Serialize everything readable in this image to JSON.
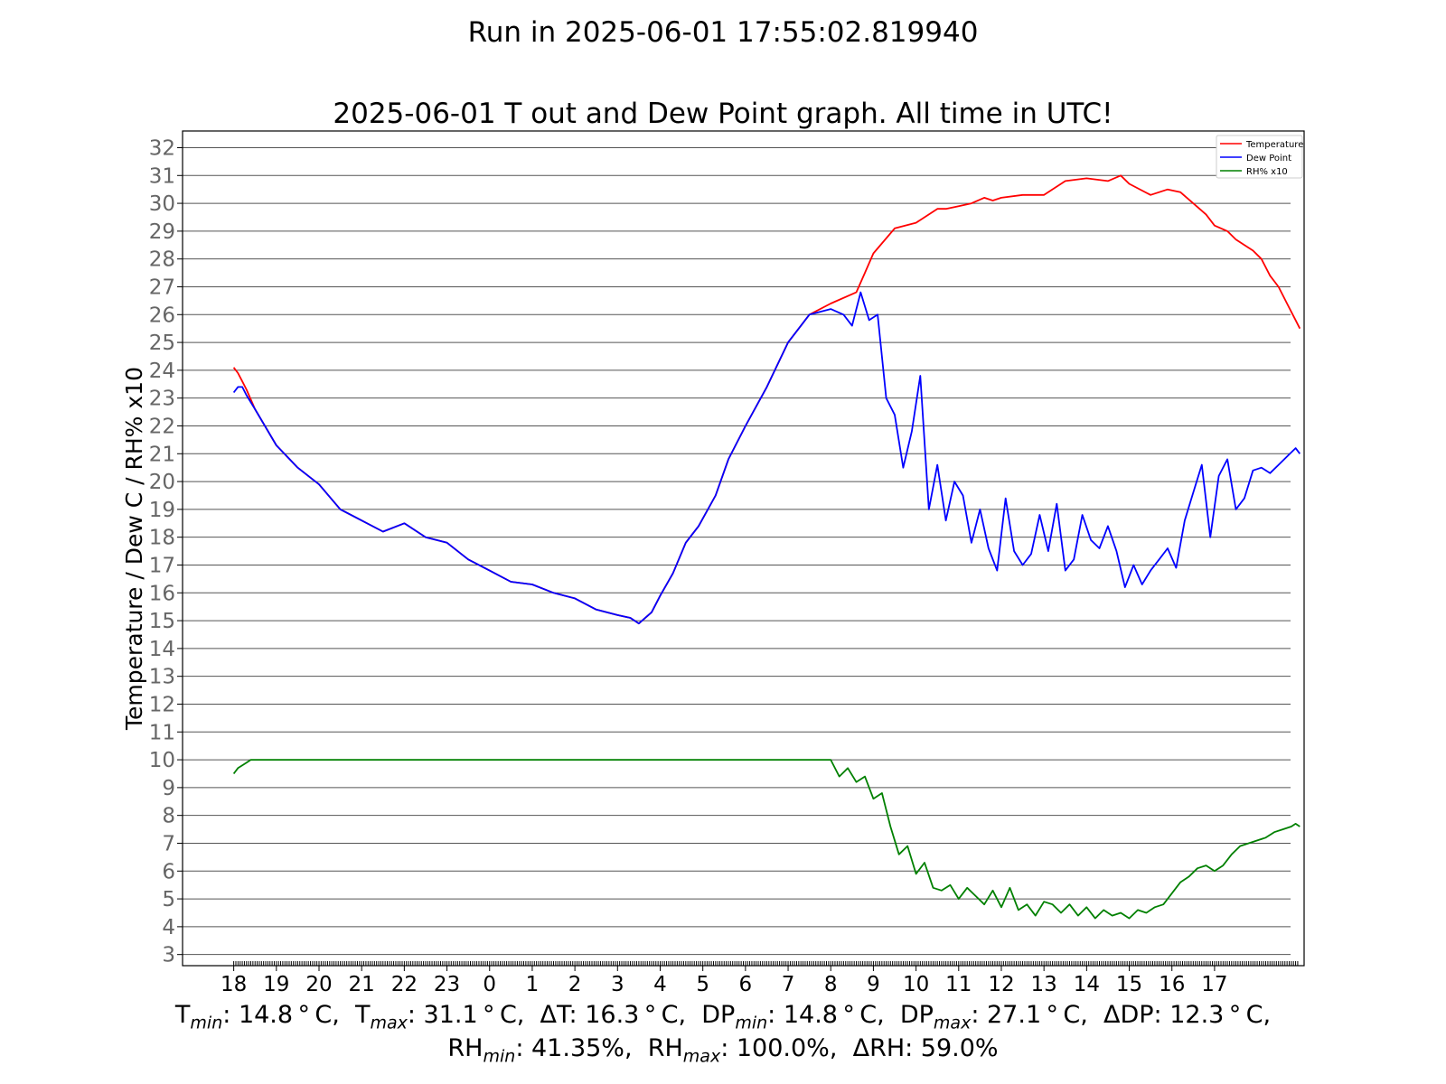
{
  "header": {
    "suptitle": "Run in 2025-06-01 17:55:02.819940"
  },
  "chart_data": {
    "type": "line",
    "title": "2025-06-01 T out and Dew Point graph. All time in UTC!",
    "xlabel": "",
    "ylabel": "Temperature / Dew C / RH% x10",
    "xtick_labels": [
      "18",
      "19",
      "20",
      "21",
      "22",
      "23",
      "0",
      "1",
      "2",
      "3",
      "4",
      "5",
      "6",
      "7",
      "8",
      "9",
      "10",
      "11",
      "12",
      "13",
      "14",
      "15",
      "16",
      "17"
    ],
    "xlim": [
      16.8,
      43.1
    ],
    "ylim": [
      2.6,
      32.6
    ],
    "yticks": [
      3,
      4,
      5,
      6,
      7,
      8,
      9,
      10,
      11,
      12,
      13,
      14,
      15,
      16,
      17,
      18,
      19,
      20,
      21,
      22,
      23,
      24,
      25,
      26,
      27,
      28,
      29,
      30,
      31,
      32
    ],
    "grid": "horizontal",
    "legend_position": "top-right",
    "series": [
      {
        "name": "Temperature",
        "color": "#ff0000",
        "x": [
          18.0,
          18.1,
          18.2,
          18.3,
          18.5,
          19.0,
          19.5,
          20.0,
          20.5,
          21.0,
          21.5,
          22.0,
          22.5,
          23.0,
          23.5,
          24.0,
          24.5,
          25.0,
          25.5,
          26.0,
          26.5,
          27.0,
          27.3,
          27.5,
          27.8,
          28.0,
          28.3,
          28.6,
          28.9,
          29.3,
          29.6,
          30.0,
          30.5,
          31.0,
          31.5,
          32.0,
          32.6,
          32.8,
          33.0,
          33.5,
          34.0,
          34.5,
          34.7,
          35.0,
          35.3,
          35.6,
          35.8,
          36.0,
          36.5,
          37.0,
          37.5,
          38.0,
          38.5,
          38.8,
          39.0,
          39.5,
          39.9,
          40.2,
          40.5,
          40.8,
          41.0,
          41.3,
          41.5,
          41.7,
          41.9,
          42.1,
          42.3,
          42.5,
          42.7,
          42.9,
          43.0
        ],
        "y": [
          24.1,
          23.9,
          23.6,
          23.3,
          22.6,
          21.3,
          20.5,
          19.9,
          19.0,
          18.6,
          18.2,
          18.5,
          18.0,
          17.8,
          17.2,
          16.8,
          16.4,
          16.3,
          16.0,
          15.8,
          15.4,
          15.2,
          15.1,
          14.9,
          15.3,
          15.9,
          16.7,
          17.8,
          18.4,
          19.5,
          20.8,
          22.0,
          23.4,
          25.0,
          26.0,
          26.4,
          26.8,
          27.5,
          28.2,
          29.1,
          29.3,
          29.8,
          29.8,
          29.9,
          30.0,
          30.2,
          30.1,
          30.2,
          30.3,
          30.3,
          30.8,
          30.9,
          30.8,
          31.0,
          30.7,
          30.3,
          30.5,
          30.4,
          30.0,
          29.6,
          29.2,
          29.0,
          28.7,
          28.5,
          28.3,
          28.0,
          27.4,
          27.0,
          26.4,
          25.8,
          25.5
        ]
      },
      {
        "name": "Dew Point",
        "color": "#0000ff",
        "x": [
          18.0,
          18.1,
          18.2,
          18.3,
          18.5,
          19.0,
          19.5,
          20.0,
          20.5,
          21.0,
          21.5,
          22.0,
          22.5,
          23.0,
          23.5,
          24.0,
          24.5,
          25.0,
          25.5,
          26.0,
          26.5,
          27.0,
          27.3,
          27.5,
          27.8,
          28.0,
          28.3,
          28.6,
          28.9,
          29.3,
          29.6,
          30.0,
          30.5,
          31.0,
          31.5,
          32.0,
          32.3,
          32.5,
          32.7,
          32.9,
          33.1,
          33.3,
          33.5,
          33.7,
          33.9,
          34.1,
          34.3,
          34.5,
          34.7,
          34.9,
          35.1,
          35.3,
          35.5,
          35.7,
          35.9,
          36.1,
          36.3,
          36.5,
          36.7,
          36.9,
          37.1,
          37.3,
          37.5,
          37.7,
          37.9,
          38.1,
          38.3,
          38.5,
          38.7,
          38.9,
          39.1,
          39.3,
          39.5,
          39.7,
          39.9,
          40.1,
          40.3,
          40.5,
          40.7,
          40.9,
          41.1,
          41.3,
          41.5,
          41.7,
          41.9,
          42.1,
          42.3,
          42.5,
          42.7,
          42.9,
          43.0
        ],
        "y": [
          23.2,
          23.4,
          23.4,
          23.1,
          22.6,
          21.3,
          20.5,
          19.9,
          19.0,
          18.6,
          18.2,
          18.5,
          18.0,
          17.8,
          17.2,
          16.8,
          16.4,
          16.3,
          16.0,
          15.8,
          15.4,
          15.2,
          15.1,
          14.9,
          15.3,
          15.9,
          16.7,
          17.8,
          18.4,
          19.5,
          20.8,
          22.0,
          23.4,
          25.0,
          26.0,
          26.2,
          26.0,
          25.6,
          26.8,
          25.8,
          26.0,
          23.0,
          22.4,
          20.5,
          21.8,
          23.8,
          19.0,
          20.6,
          18.6,
          20.0,
          19.5,
          17.8,
          19.0,
          17.6,
          16.8,
          19.4,
          17.5,
          17.0,
          17.4,
          18.8,
          17.5,
          19.2,
          16.8,
          17.2,
          18.8,
          17.9,
          17.6,
          18.4,
          17.5,
          16.2,
          17.0,
          16.3,
          16.8,
          17.2,
          17.6,
          16.9,
          18.6,
          19.6,
          20.6,
          18.0,
          20.2,
          20.8,
          19.0,
          19.4,
          20.4,
          20.5,
          20.3,
          20.6,
          20.9,
          21.2,
          21.0
        ]
      },
      {
        "name": "RH% x10",
        "color": "#008000",
        "x": [
          18.0,
          18.1,
          18.2,
          18.3,
          18.4,
          19.0,
          20.0,
          21.0,
          22.0,
          23.0,
          24.0,
          25.0,
          26.0,
          27.0,
          28.0,
          29.0,
          30.0,
          31.0,
          31.5,
          31.8,
          32.0,
          32.2,
          32.4,
          32.6,
          32.8,
          33.0,
          33.2,
          33.4,
          33.6,
          33.8,
          34.0,
          34.2,
          34.4,
          34.6,
          34.8,
          35.0,
          35.2,
          35.4,
          35.6,
          35.8,
          36.0,
          36.2,
          36.4,
          36.6,
          36.8,
          37.0,
          37.2,
          37.4,
          37.6,
          37.8,
          38.0,
          38.2,
          38.4,
          38.6,
          38.8,
          39.0,
          39.2,
          39.4,
          39.6,
          39.8,
          40.0,
          40.2,
          40.4,
          40.6,
          40.8,
          41.0,
          41.2,
          41.4,
          41.6,
          41.8,
          42.0,
          42.2,
          42.4,
          42.6,
          42.8,
          42.9,
          43.0
        ],
        "y": [
          9.5,
          9.7,
          9.8,
          9.9,
          10.0,
          10.0,
          10.0,
          10.0,
          10.0,
          10.0,
          10.0,
          10.0,
          10.0,
          10.0,
          10.0,
          10.0,
          10.0,
          10.0,
          10.0,
          10.0,
          10.0,
          9.4,
          9.7,
          9.2,
          9.4,
          8.6,
          8.8,
          7.6,
          6.6,
          6.9,
          5.9,
          6.3,
          5.4,
          5.3,
          5.5,
          5.0,
          5.4,
          5.1,
          4.8,
          5.3,
          4.7,
          5.4,
          4.6,
          4.8,
          4.4,
          4.9,
          4.8,
          4.5,
          4.8,
          4.4,
          4.7,
          4.3,
          4.6,
          4.4,
          4.5,
          4.3,
          4.6,
          4.5,
          4.7,
          4.8,
          5.2,
          5.6,
          5.8,
          6.1,
          6.2,
          6.0,
          6.2,
          6.6,
          6.9,
          7.0,
          7.1,
          7.2,
          7.4,
          7.5,
          7.6,
          7.7,
          7.6
        ]
      }
    ]
  },
  "stats": {
    "line1": {
      "t_sym": "T",
      "t_min_sub": "min",
      "t_min_val": ": 14.8$^\\circ$C,",
      "t_max_sub": "max",
      "t_max_val": ": 31.1$^\\circ$C,",
      "dt_label": "ΔT: 16.3$^\\circ$C,",
      "dp_sym": "DP",
      "dp_min_sub": "min",
      "dp_min_val": ": 14.8$^\\circ$C,",
      "dp_max_sub": "max",
      "dp_max_val": ": 27.1$^\\circ$C,",
      "ddp_label": "ΔDP: 12.3$^\\circ$C,"
    },
    "line2": {
      "rh_sym": "RH",
      "rh_min_sub": "min",
      "rh_min_val": ": 41.35%,",
      "rh_max_sub": "max",
      "rh_max_val": ": 100.0%,",
      "drh_label": "ΔRH: 59.0%"
    }
  }
}
